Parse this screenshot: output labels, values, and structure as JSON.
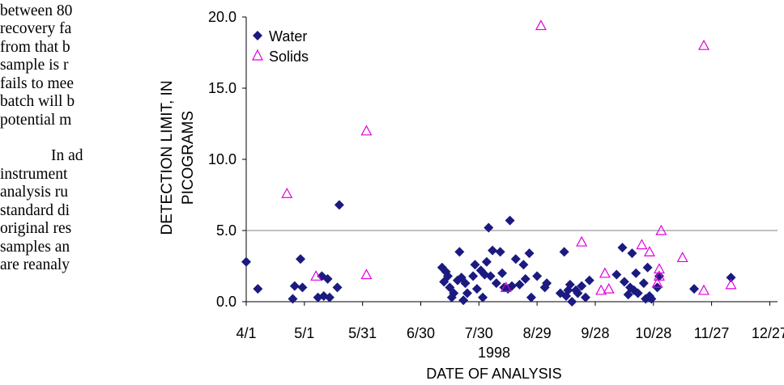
{
  "page_text": [
    "between 80",
    "recovery fa",
    "from that b",
    "sample is r",
    "fails to mee",
    "batch will b",
    "potential m",
    "In ad",
    "instrument",
    "analysis ru",
    "standard di",
    "original res",
    "samples an",
    "are reanaly"
  ],
  "chart_data": {
    "type": "scatter",
    "title": "",
    "xlabel": "DATE OF ANALYSIS",
    "xlabel_year": "1998",
    "ylabel_lines": [
      "DETECTION LIMIT, IN",
      "PICOGRAMS"
    ],
    "x_unit": "day of year 1998",
    "xlim": [
      91,
      365
    ],
    "ylim": [
      0,
      20
    ],
    "x_ticks": [
      {
        "value": 91,
        "label": "4/1"
      },
      {
        "value": 121,
        "label": "5/1"
      },
      {
        "value": 151,
        "label": "5/31"
      },
      {
        "value": 181,
        "label": "6/30"
      },
      {
        "value": 211,
        "label": "7/30"
      },
      {
        "value": 241,
        "label": "8/29"
      },
      {
        "value": 271,
        "label": "9/28"
      },
      {
        "value": 301,
        "label": "10/28"
      },
      {
        "value": 331,
        "label": "11/27"
      },
      {
        "value": 361,
        "label": "12/27"
      }
    ],
    "y_ticks": [
      {
        "value": 0,
        "label": "0.0"
      },
      {
        "value": 5,
        "label": "5.0"
      },
      {
        "value": 10,
        "label": "10.0"
      },
      {
        "value": 15,
        "label": "15.0"
      },
      {
        "value": 20,
        "label": "20.0"
      }
    ],
    "reference_line": 5.0,
    "grid": false,
    "legend_position": "top-left",
    "series": [
      {
        "name": "Water",
        "marker": "diamond",
        "color": "#1a1a80",
        "points": [
          [
            91,
            2.8
          ],
          [
            97,
            0.9
          ],
          [
            115,
            0.2
          ],
          [
            116,
            1.1
          ],
          [
            119,
            3.0
          ],
          [
            120,
            1.0
          ],
          [
            128,
            0.3
          ],
          [
            130,
            1.8
          ],
          [
            131,
            0.4
          ],
          [
            133,
            1.6
          ],
          [
            134,
            0.3
          ],
          [
            139,
            6.8
          ],
          [
            138,
            1.0
          ],
          [
            192,
            2.4
          ],
          [
            193,
            1.4
          ],
          [
            194,
            2.1
          ],
          [
            195,
            1.8
          ],
          [
            196,
            1.0
          ],
          [
            197,
            0.3
          ],
          [
            198,
            0.6
          ],
          [
            200,
            1.5
          ],
          [
            201,
            3.5
          ],
          [
            202,
            1.7
          ],
          [
            203,
            0.1
          ],
          [
            204,
            1.3
          ],
          [
            205,
            0.6
          ],
          [
            208,
            1.8
          ],
          [
            209,
            2.6
          ],
          [
            210,
            0.9
          ],
          [
            212,
            2.2
          ],
          [
            213,
            0.3
          ],
          [
            214,
            1.9
          ],
          [
            215,
            2.8
          ],
          [
            216,
            5.2
          ],
          [
            217,
            1.8
          ],
          [
            218,
            3.6
          ],
          [
            220,
            1.3
          ],
          [
            222,
            3.5
          ],
          [
            223,
            2.0
          ],
          [
            224,
            1.0
          ],
          [
            226,
            0.9
          ],
          [
            227,
            5.7
          ],
          [
            228,
            1.1
          ],
          [
            230,
            3.0
          ],
          [
            232,
            1.2
          ],
          [
            234,
            2.6
          ],
          [
            235,
            1.6
          ],
          [
            237,
            3.4
          ],
          [
            238,
            0.3
          ],
          [
            241,
            1.8
          ],
          [
            245,
            1.0
          ],
          [
            246,
            1.3
          ],
          [
            253,
            0.6
          ],
          [
            255,
            3.5
          ],
          [
            256,
            0.4
          ],
          [
            257,
            0.8
          ],
          [
            258,
            1.2
          ],
          [
            259,
            0.0
          ],
          [
            261,
            0.8
          ],
          [
            262,
            0.6
          ],
          [
            264,
            1.1
          ],
          [
            266,
            0.3
          ],
          [
            268,
            1.5
          ],
          [
            282,
            1.9
          ],
          [
            285,
            3.8
          ],
          [
            286,
            1.4
          ],
          [
            288,
            0.5
          ],
          [
            289,
            1.0
          ],
          [
            290,
            3.4
          ],
          [
            291,
            0.8
          ],
          [
            292,
            2.0
          ],
          [
            293,
            0.6
          ],
          [
            296,
            1.3
          ],
          [
            297,
            0.2
          ],
          [
            298,
            2.4
          ],
          [
            299,
            0.4
          ],
          [
            300,
            0.2
          ],
          [
            303,
            1.0
          ],
          [
            304,
            1.8
          ],
          [
            322,
            0.9
          ],
          [
            341,
            1.7
          ]
        ]
      },
      {
        "name": "Solids",
        "marker": "triangle",
        "color": "#e000e0",
        "points": [
          [
            112,
            7.6
          ],
          [
            127,
            1.8
          ],
          [
            153,
            12.0
          ],
          [
            153,
            1.9
          ],
          [
            225,
            1.0
          ],
          [
            243,
            19.4
          ],
          [
            264,
            4.2
          ],
          [
            274,
            0.8
          ],
          [
            276,
            2.0
          ],
          [
            278,
            0.9
          ],
          [
            295,
            4.0
          ],
          [
            299,
            3.5
          ],
          [
            303,
            1.3
          ],
          [
            304,
            1.8
          ],
          [
            304,
            2.3
          ],
          [
            305,
            5.0
          ],
          [
            316,
            3.1
          ],
          [
            327,
            18.0
          ],
          [
            327,
            0.8
          ],
          [
            341,
            1.2
          ]
        ]
      }
    ]
  }
}
